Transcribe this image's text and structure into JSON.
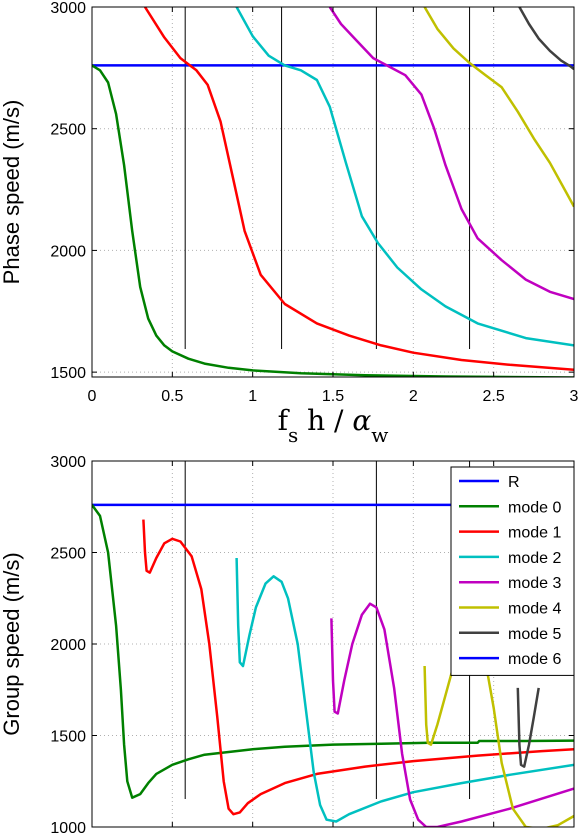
{
  "chart_data": [
    {
      "type": "line",
      "ylabel": "Phase speed (m/s)",
      "xlabel": {
        "main": "f",
        "sub1": "s",
        "mid": " h / ",
        "greek": "α",
        "sub2": "w"
      },
      "xlim": [
        0,
        3
      ],
      "ylim": [
        1480,
        3000
      ],
      "xticks": [
        "0",
        "0.5",
        "1",
        "1.5",
        "2",
        "2.5",
        "3"
      ],
      "xtick_values": [
        0,
        0.5,
        1,
        1.5,
        2,
        2.5,
        3
      ],
      "yticks": [
        "1500",
        "2000",
        "2500",
        "3000"
      ],
      "ytick_values": [
        1500,
        2000,
        2500,
        3000
      ],
      "grid": true,
      "vlines": [
        0.58,
        1.18,
        1.77,
        2.35
      ],
      "series": [
        {
          "color": "#0000ff",
          "x": [
            0,
            3
          ],
          "y": [
            2760,
            2760
          ]
        },
        {
          "color": "#008000",
          "x": [
            0,
            0.05,
            0.1,
            0.15,
            0.2,
            0.25,
            0.3,
            0.35,
            0.4,
            0.45,
            0.5,
            0.6,
            0.7,
            0.85,
            1.0,
            1.3,
            1.7,
            2.2,
            3.0
          ],
          "y": [
            2760,
            2740,
            2690,
            2560,
            2350,
            2080,
            1850,
            1720,
            1650,
            1610,
            1585,
            1555,
            1535,
            1518,
            1507,
            1495,
            1487,
            1482,
            1478
          ]
        },
        {
          "color": "#ff0000",
          "x": [
            0.33,
            0.45,
            0.55,
            0.6,
            0.65,
            0.72,
            0.8,
            0.88,
            0.95,
            1.05,
            1.2,
            1.4,
            1.6,
            1.8,
            2.0,
            2.3,
            2.6,
            3.0
          ],
          "y": [
            3000,
            2875,
            2790,
            2765,
            2740,
            2680,
            2530,
            2290,
            2080,
            1900,
            1780,
            1700,
            1650,
            1610,
            1580,
            1550,
            1530,
            1510
          ]
        },
        {
          "color": "#00c0c0",
          "x": [
            0.9,
            1.0,
            1.1,
            1.2,
            1.3,
            1.4,
            1.48,
            1.58,
            1.68,
            1.78,
            1.9,
            2.05,
            2.2,
            2.4,
            2.7,
            3.0
          ],
          "y": [
            3000,
            2880,
            2800,
            2760,
            2740,
            2700,
            2590,
            2360,
            2140,
            2030,
            1930,
            1840,
            1770,
            1700,
            1640,
            1610
          ]
        },
        {
          "color": "#c000c0",
          "x": [
            1.48,
            1.55,
            1.65,
            1.75,
            1.85,
            1.95,
            2.05,
            2.13,
            2.2,
            2.3,
            2.4,
            2.55,
            2.7,
            2.85,
            3.0
          ],
          "y": [
            3000,
            2930,
            2860,
            2790,
            2755,
            2720,
            2640,
            2500,
            2350,
            2170,
            2050,
            1960,
            1880,
            1830,
            1800
          ]
        },
        {
          "color": "#c0c000",
          "x": [
            2.07,
            2.15,
            2.25,
            2.35,
            2.45,
            2.55,
            2.65,
            2.75,
            2.85,
            2.95,
            3.0
          ],
          "y": [
            3000,
            2910,
            2830,
            2770,
            2720,
            2670,
            2570,
            2460,
            2360,
            2240,
            2180
          ]
        },
        {
          "color": "#404040",
          "x": [
            2.66,
            2.72,
            2.78,
            2.85,
            2.92,
            2.98,
            3.0
          ],
          "y": [
            3000,
            2930,
            2870,
            2820,
            2780,
            2755,
            2745
          ]
        }
      ]
    },
    {
      "type": "line",
      "ylabel": "Group speed (m/s)",
      "xlim": [
        0,
        3
      ],
      "ylim": [
        1000,
        3000
      ],
      "xticks": [],
      "xtick_values": [
        0,
        0.5,
        1,
        1.5,
        2,
        2.5,
        3
      ],
      "yticks": [
        "1000",
        "1500",
        "2000",
        "2500",
        "3000"
      ],
      "ytick_values": [
        1000,
        1500,
        2000,
        2500,
        3000
      ],
      "grid": true,
      "vlines": [
        0.58,
        1.77,
        2.35
      ],
      "legend": {
        "placement": "top-right",
        "entries": [
          {
            "label": "R",
            "color": "#0000ff"
          },
          {
            "label": "mode 0",
            "color": "#008000"
          },
          {
            "label": "mode 1",
            "color": "#ff0000"
          },
          {
            "label": "mode 2",
            "color": "#00c0c0"
          },
          {
            "label": "mode 3",
            "color": "#c000c0"
          },
          {
            "label": "mode 4",
            "color": "#c0c000"
          },
          {
            "label": "mode 5",
            "color": "#404040"
          },
          {
            "label": "mode 6",
            "color": "#0000ff"
          }
        ]
      },
      "series": [
        {
          "name": "R",
          "color": "#0000ff",
          "x": [
            0,
            3
          ],
          "y": [
            2760,
            2760
          ]
        },
        {
          "name": "mode 0",
          "color": "#008000",
          "x": [
            0,
            0.05,
            0.1,
            0.15,
            0.18,
            0.2,
            0.22,
            0.25,
            0.3,
            0.35,
            0.4,
            0.5,
            0.6,
            0.7,
            0.85,
            1.0,
            1.2,
            1.5,
            1.8,
            2.1,
            2.4,
            2.41,
            2.7,
            3.0
          ],
          "y": [
            2760,
            2700,
            2500,
            2100,
            1750,
            1450,
            1250,
            1160,
            1180,
            1240,
            1290,
            1340,
            1370,
            1395,
            1410,
            1425,
            1438,
            1450,
            1455,
            1460,
            1460,
            1470,
            1470,
            1472
          ]
        },
        {
          "name": "mode 1",
          "color": "#ff0000",
          "x": [
            0.32,
            0.33,
            0.34,
            0.36,
            0.4,
            0.45,
            0.5,
            0.55,
            0.62,
            0.68,
            0.73,
            0.78,
            0.82,
            0.85,
            0.88,
            0.92,
            0.97,
            1.05,
            1.2,
            1.4,
            1.7,
            2.0,
            2.4,
            2.8,
            3.0
          ],
          "y": [
            2680,
            2500,
            2400,
            2390,
            2470,
            2550,
            2575,
            2560,
            2480,
            2300,
            2000,
            1600,
            1250,
            1100,
            1070,
            1080,
            1130,
            1180,
            1240,
            1290,
            1330,
            1360,
            1390,
            1415,
            1425
          ]
        },
        {
          "name": "mode 2",
          "color": "#00c0c0",
          "x": [
            0.9,
            0.91,
            0.92,
            0.94,
            0.98,
            1.02,
            1.08,
            1.13,
            1.18,
            1.22,
            1.28,
            1.33,
            1.38,
            1.42,
            1.46,
            1.52,
            1.6,
            1.8,
            2.0,
            2.3,
            2.6,
            3.0
          ],
          "y": [
            2470,
            2100,
            1900,
            1880,
            2050,
            2200,
            2330,
            2370,
            2340,
            2250,
            2000,
            1650,
            1300,
            1120,
            1040,
            1030,
            1070,
            1140,
            1190,
            1240,
            1285,
            1340
          ]
        },
        {
          "name": "mode 3",
          "color": "#c000c0",
          "x": [
            1.49,
            1.5,
            1.51,
            1.53,
            1.57,
            1.62,
            1.68,
            1.73,
            1.77,
            1.82,
            1.88,
            1.93,
            1.98,
            2.03,
            2.08,
            2.15,
            2.3,
            2.6,
            3.0
          ],
          "y": [
            2140,
            1800,
            1630,
            1620,
            1800,
            2000,
            2160,
            2220,
            2200,
            2080,
            1760,
            1400,
            1150,
            1040,
            1000,
            1000,
            1030,
            1100,
            1210
          ]
        },
        {
          "name": "mode 4",
          "color": "#c0c000",
          "x": [
            2.07,
            2.08,
            2.09,
            2.11,
            2.15,
            2.2,
            2.25,
            2.3,
            2.35,
            2.4,
            2.45,
            2.5,
            2.55,
            2.62,
            2.7,
            2.8,
            2.9,
            3.0
          ],
          "y": [
            1880,
            1560,
            1460,
            1450,
            1560,
            1720,
            1880,
            2020,
            2080,
            2060,
            1900,
            1650,
            1350,
            1100,
            1000,
            990,
            1010,
            1060
          ]
        },
        {
          "name": "mode 5",
          "color": "#404040",
          "x": [
            2.65,
            2.66,
            2.67,
            2.69,
            2.72,
            2.75,
            2.78
          ],
          "y": [
            1760,
            1450,
            1340,
            1330,
            1450,
            1600,
            1760
          ]
        },
        {
          "name": "mode 6",
          "color": "#0000ff",
          "x": [
            3.0
          ],
          "y": [
            1900
          ]
        }
      ]
    }
  ]
}
